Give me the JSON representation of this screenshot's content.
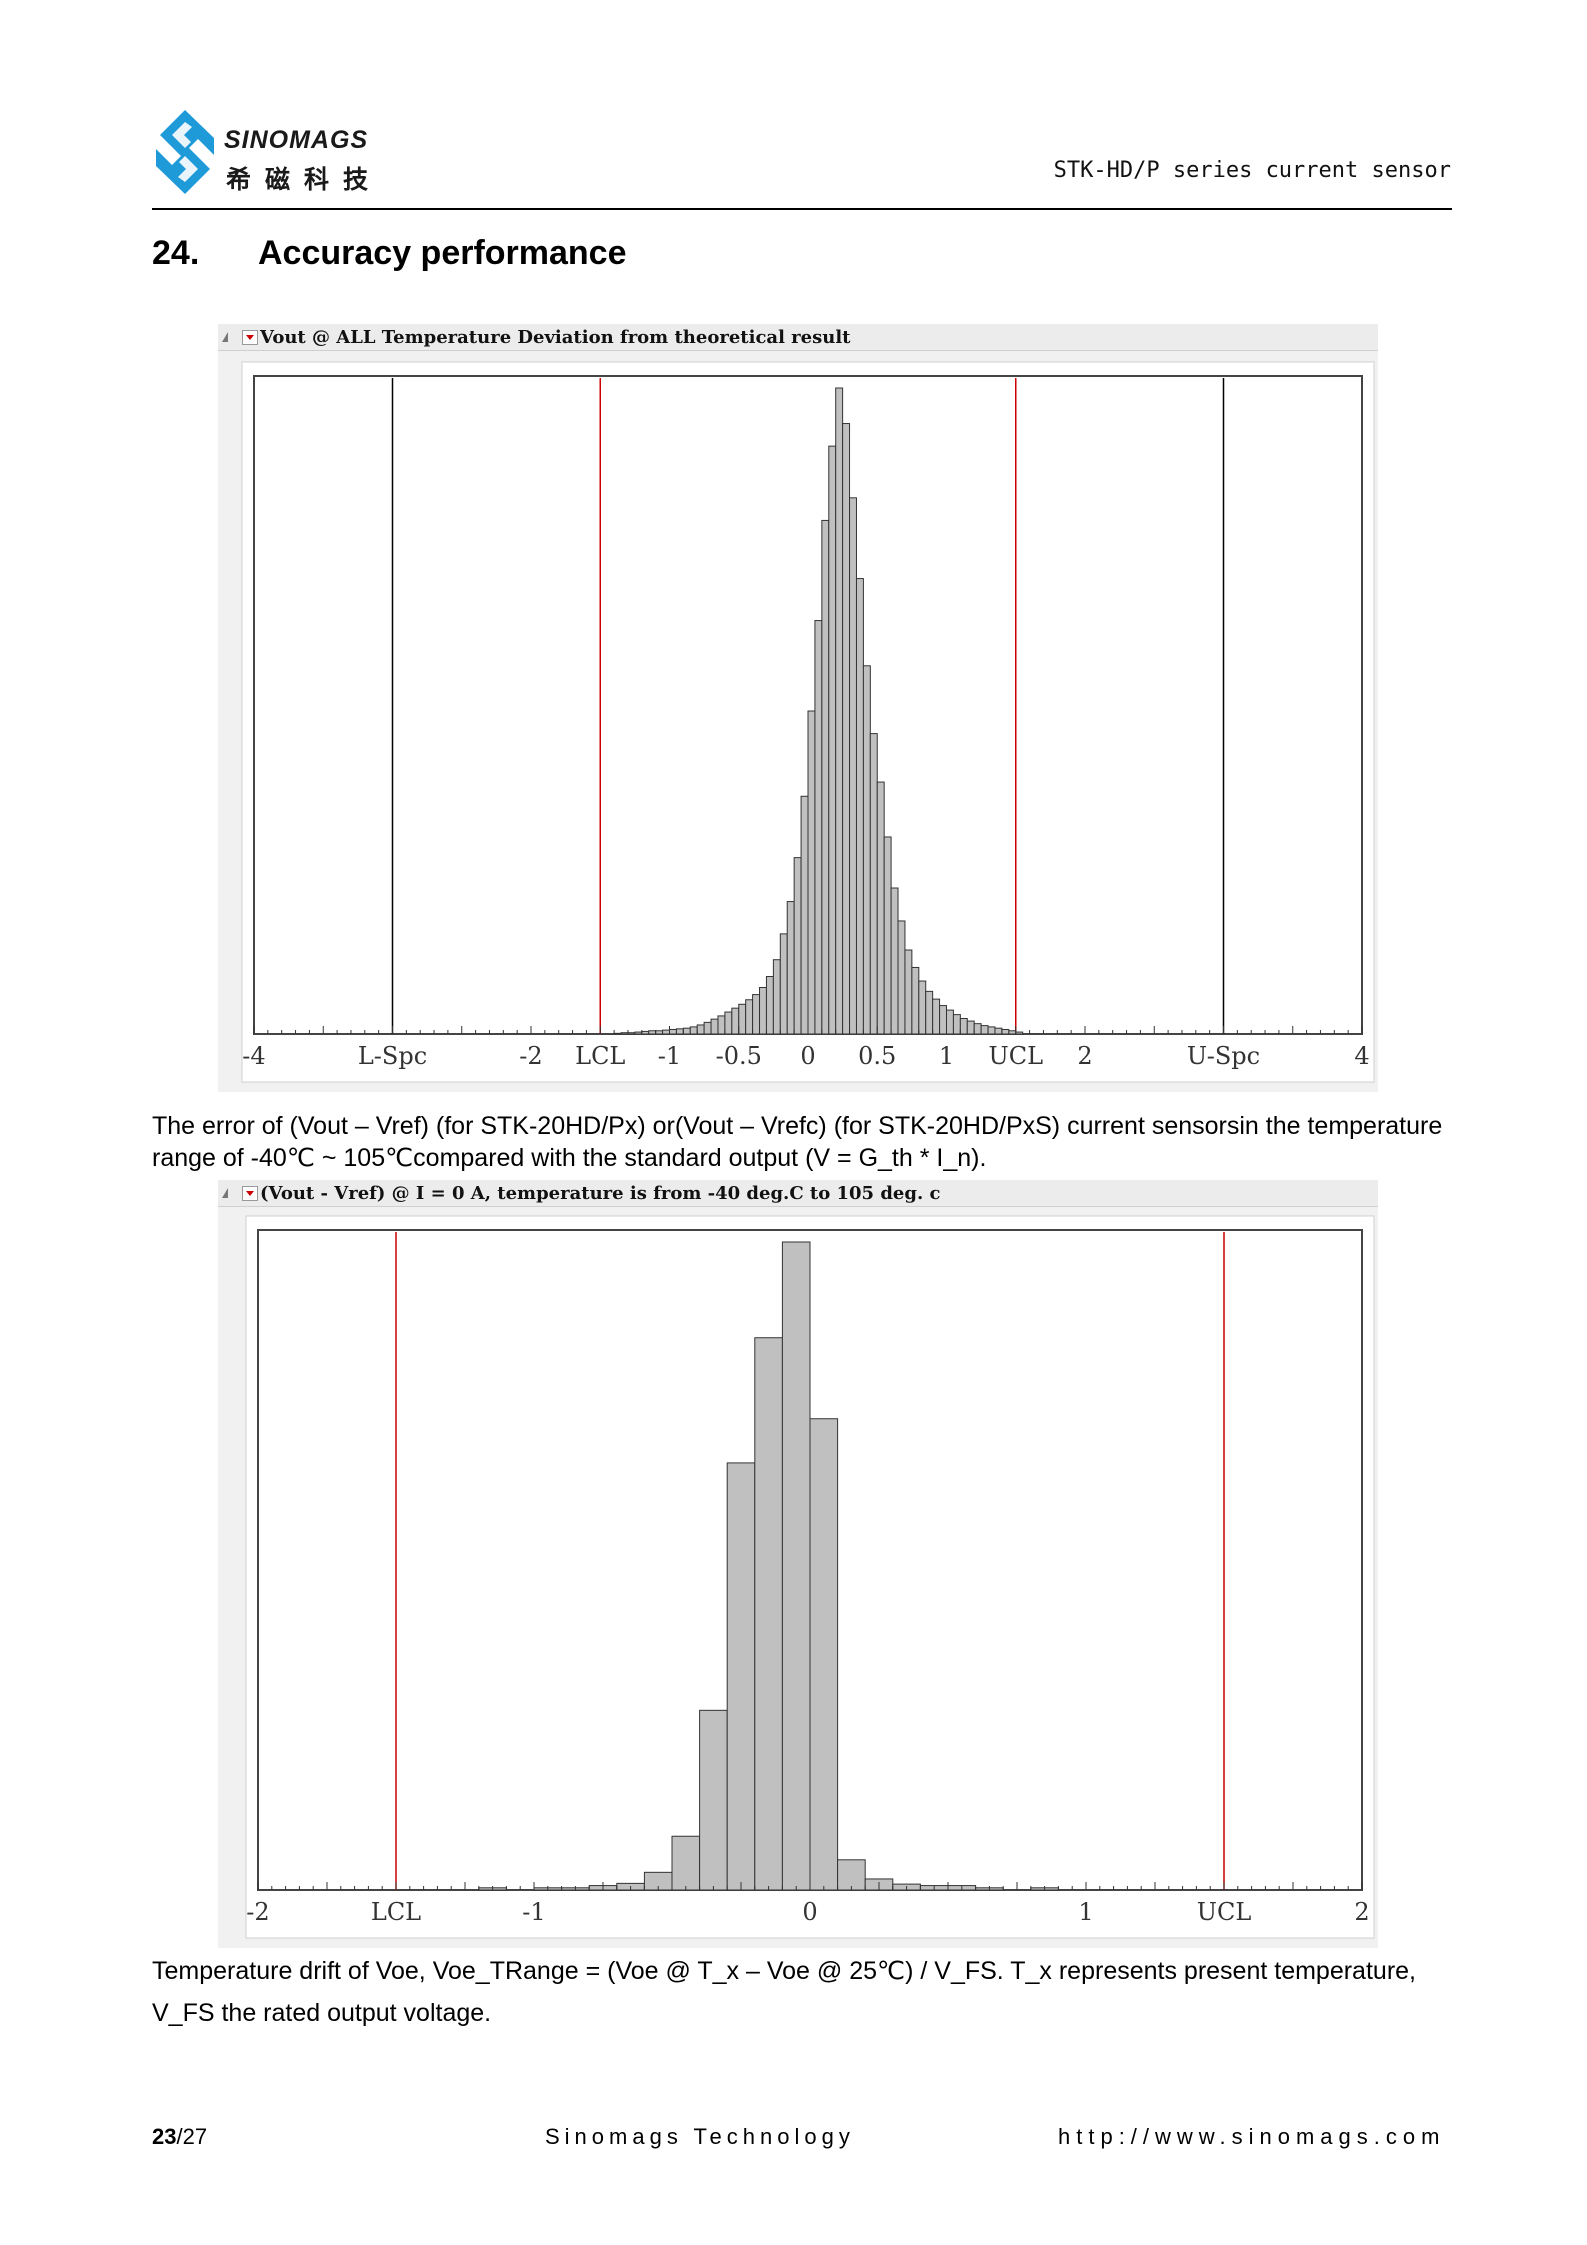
{
  "header": {
    "logo_text_en": "SINOMAGS",
    "logo_text_cn": "希磁科技",
    "document_title": "STK-HD/P series current sensor"
  },
  "section": {
    "number": "24.",
    "title": "Accuracy performance"
  },
  "figures": [
    {
      "title": "Vout @ ALL Temperature Deviation from theoretical result"
    },
    {
      "title": "(Vout - Vref) @ I = 0 A, temperature is from -40 deg.C to 105 deg. c"
    }
  ],
  "captions": {
    "figure1": "The error of (Vout – Vref) (for STK-20HD/Px) or(Vout – Vrefc) (for STK-20HD/PxS) current sensorsin the temperature range of -40℃ ~ 105℃compared with the standard output (V = G_th * I_n).",
    "figure2": "Temperature drift of Voe, Voe_TRange = (Voe @ T_x – Voe @ 25℃) / V_FS. T_x represents present temperature, V_FS the rated output voltage."
  },
  "footer": {
    "page_current": "23",
    "page_total": "/27",
    "company": "Sinomags Technology",
    "url": "http://www.sinomags.com"
  },
  "chart_data": [
    {
      "type": "bar",
      "title": "Vout @ ALL Temperature Deviation from theoretical result",
      "xlim": [
        -4,
        4
      ],
      "x_tick_labels": [
        "-4",
        "L-Spc",
        "-2",
        "LCL",
        "-1",
        "-0.5",
        "0",
        "0.5",
        "1",
        "UCL",
        "2",
        "U-Spc",
        "4"
      ],
      "x_tick_values": [
        -4,
        -3,
        -2,
        -1.5,
        -1,
        -0.5,
        0,
        0.5,
        1,
        1.5,
        2,
        3,
        4
      ],
      "reference_lines": [
        {
          "label": "L-Spc",
          "x": -3,
          "color": "#000000"
        },
        {
          "label": "LCL",
          "x": -1.5,
          "color": "#cc0000"
        },
        {
          "label": "UCL",
          "x": 1.5,
          "color": "#cc0000"
        },
        {
          "label": "U-Spc",
          "x": 3,
          "color": "#000000"
        }
      ],
      "bin_width": 0.05,
      "bin_start": -1.4,
      "values": [
        0.1,
        0.2,
        0.2,
        0.3,
        0.4,
        0.5,
        0.5,
        0.6,
        0.7,
        0.8,
        0.9,
        1.1,
        1.4,
        1.8,
        2.3,
        2.8,
        3.4,
        4.0,
        4.6,
        5.3,
        6.1,
        7.2,
        8.9,
        11.5,
        15.5,
        20.5,
        27.3,
        36.8,
        50.0,
        64.0,
        79.5,
        91.0,
        100.0,
        94.5,
        83.0,
        70.5,
        57.0,
        46.5,
        39.0,
        30.5,
        22.6,
        17.5,
        13.0,
        10.3,
        8.2,
        6.6,
        5.4,
        4.4,
        3.7,
        3.0,
        2.4,
        2.0,
        1.6,
        1.3,
        1.1,
        0.9,
        0.7,
        0.5,
        0.3
      ],
      "bar_color": "#c0c0c0"
    },
    {
      "type": "bar",
      "title": "(Vout - Vref) @ I = 0 A, temperature is from -40 deg.C to 105 deg. c",
      "xlim": [
        -2,
        2
      ],
      "x_tick_labels": [
        "-2",
        "LCL",
        "-1",
        "0",
        "1",
        "UCL",
        "2"
      ],
      "x_tick_values": [
        -2,
        -1.5,
        -1,
        0,
        1,
        1.5,
        2
      ],
      "reference_lines": [
        {
          "label": "LCL",
          "x": -1.5,
          "color": "#cc0000"
        },
        {
          "label": "UCL",
          "x": 1.5,
          "color": "#cc0000"
        }
      ],
      "bin_width": 0.1,
      "bin_start": -1.2,
      "values": [
        0.3,
        0,
        0.3,
        0.3,
        0.6,
        0.9,
        2.4,
        7.3,
        24.4,
        58.0,
        75.0,
        88.0,
        64.0,
        4.1,
        1.5,
        0.8,
        0.6,
        0.6,
        0.3,
        0,
        0.3
      ],
      "bar_color": "#c0c0c0"
    }
  ]
}
